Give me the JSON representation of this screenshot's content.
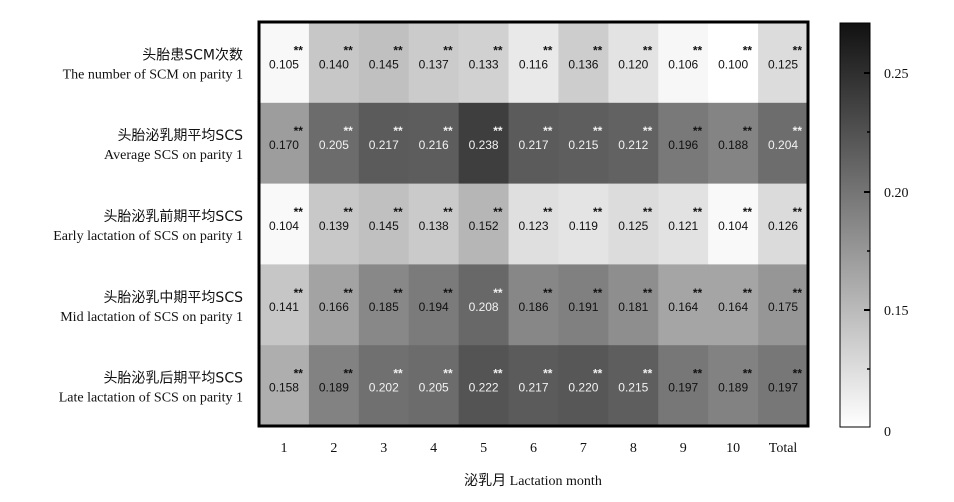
{
  "chart_data": {
    "type": "heatmap",
    "xlabel": "泌乳月 Lactation month",
    "x": [
      "1",
      "2",
      "3",
      "4",
      "5",
      "6",
      "7",
      "8",
      "9",
      "10",
      "Total"
    ],
    "rows": [
      {
        "label_cn": "头胎患SCM次数",
        "label_en": "The number of SCM on parity 1",
        "values": [
          0.105,
          0.14,
          0.145,
          0.137,
          0.133,
          0.116,
          0.136,
          0.12,
          0.106,
          0.1,
          0.125
        ]
      },
      {
        "label_cn": "头胎泌乳期平均SCS",
        "label_en": "Average SCS on parity 1",
        "values": [
          0.17,
          0.205,
          0.217,
          0.216,
          0.238,
          0.217,
          0.215,
          0.212,
          0.196,
          0.188,
          0.204
        ]
      },
      {
        "label_cn": "头胎泌乳前期平均SCS",
        "label_en": "Early lactation of SCS on parity 1",
        "values": [
          0.104,
          0.139,
          0.145,
          0.138,
          0.152,
          0.123,
          0.119,
          0.125,
          0.121,
          0.104,
          0.126
        ]
      },
      {
        "label_cn": "头胎泌乳中期平均SCS",
        "label_en": "Mid lactation of SCS on parity 1",
        "values": [
          0.141,
          0.166,
          0.185,
          0.194,
          0.208,
          0.186,
          0.191,
          0.181,
          0.164,
          0.164,
          0.175
        ]
      },
      {
        "label_cn": "头胎泌乳后期平均SCS",
        "label_en": "Late lactation of SCS on parity 1",
        "values": [
          0.158,
          0.189,
          0.202,
          0.205,
          0.222,
          0.217,
          0.22,
          0.215,
          0.197,
          0.189,
          0.197
        ]
      }
    ],
    "significance_marker": "**",
    "colorbar": {
      "ticks": [
        "0",
        "0.15",
        "0.20",
        "0.25"
      ],
      "scale_min": 0.1,
      "scale_max": 0.27,
      "colormap": [
        "#ffffff",
        "#111111"
      ]
    },
    "grid": false
  }
}
